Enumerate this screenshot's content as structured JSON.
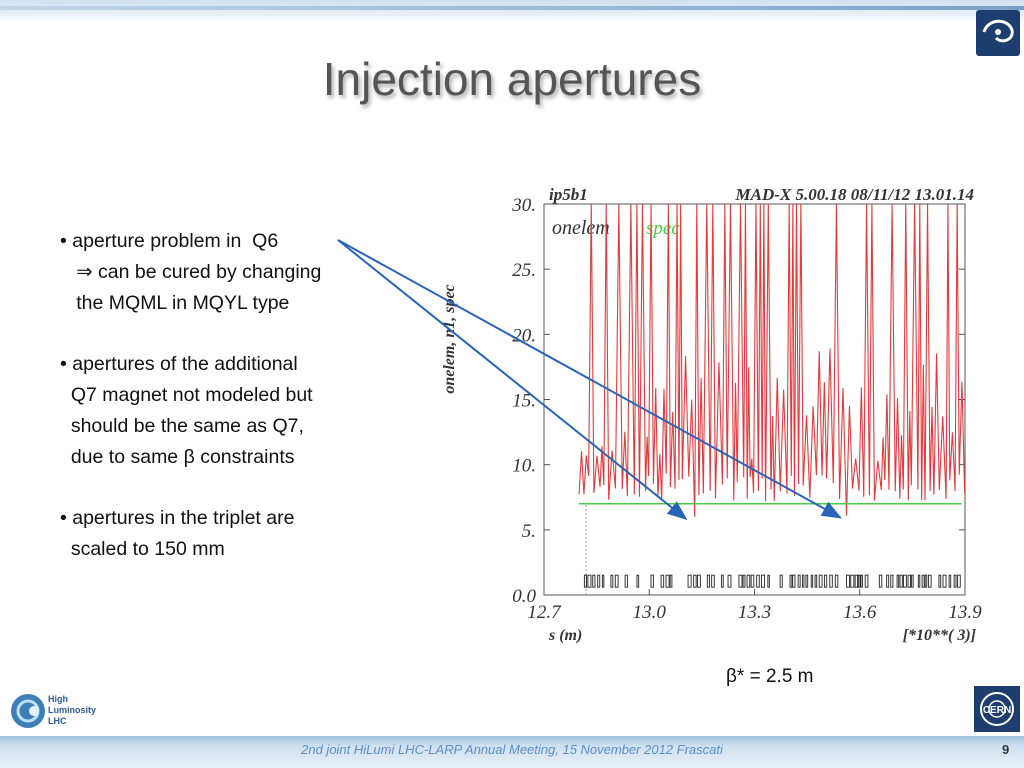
{
  "slide": {
    "title": "Injection apertures",
    "bullets": [
      "• aperture problem in  Q6",
      "   ⇒ can be cured by changing",
      "   the MQML in MQYL type",
      "• apertures of the additional",
      "  Q7 magnet not modeled but",
      "  should be the same as Q7,",
      "  due to same β constraints",
      "• apertures in the triplet are",
      "  scaled to 150 mm"
    ],
    "beta_star": "β* = 2.5 m",
    "footer": "2nd joint HiLumi LHC-LARP Annual Meeting, 15 November 2012 Frascati",
    "page_number": "9",
    "hilumi_logo": {
      "lines": [
        "High",
        "Luminosity",
        "LHC"
      ]
    },
    "cern_logo_text": "CERN"
  },
  "chart_data": {
    "type": "line",
    "header_left": "ip5b1",
    "header_right": "MAD-X 5.00.18  08/11/12 13.01.14",
    "legend": [
      "onelem",
      "spec"
    ],
    "ylabel": "onelem, n1, spec",
    "xlabel": "s (m)",
    "x_multiplier": "[*10**( 3)]",
    "xlim": [
      12.7,
      13.9
    ],
    "ylim": [
      0,
      30
    ],
    "x_ticks": [
      "12.7",
      "13.0",
      "13.3",
      "13.6",
      "13.9"
    ],
    "y_ticks": [
      "0.0",
      "5.",
      "10.",
      "15.",
      "20.",
      "25.",
      "30."
    ],
    "spec_value": 7,
    "colors": {
      "n1": "#e23b3b",
      "spec": "#44cc44",
      "arrow": "#2a64b8"
    },
    "minima_highlighted": [
      {
        "s": 13.11,
        "n1": 6.0
      },
      {
        "s": 13.55,
        "n1": 6.1
      }
    ]
  }
}
